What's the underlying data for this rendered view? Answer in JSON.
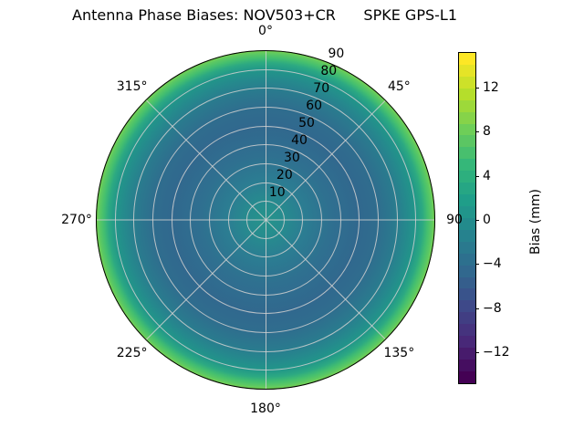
{
  "header": {
    "title": "Antenna Phase Biases: NOV503+CR      SPKE GPS-L1"
  },
  "colors": {
    "background": "#ffffff",
    "grid": "#d0d0d0",
    "outline": "#000000",
    "text": "#000000"
  },
  "chart_data": {
    "type": "heatmap",
    "projection": "polar",
    "title": "Antenna Phase Biases: NOV503+CR      SPKE GPS-L1",
    "colormap": "viridis",
    "angular_ticks": [
      {
        "angle": 0,
        "label": "0°"
      },
      {
        "angle": 45,
        "label": "45°"
      },
      {
        "angle": 90,
        "label": "90"
      },
      {
        "angle": 135,
        "label": "135°"
      },
      {
        "angle": 180,
        "label": "180°"
      },
      {
        "angle": 225,
        "label": "225°"
      },
      {
        "angle": 270,
        "label": "270°"
      },
      {
        "angle": 315,
        "label": "315°"
      }
    ],
    "radial_ticks": {
      "values": [
        10,
        20,
        30,
        40,
        50,
        60,
        70,
        80,
        90
      ],
      "labels": [
        "10",
        "20",
        "30",
        "40",
        "50",
        "60",
        "70",
        "80",
        "90"
      ],
      "label_angle_deg": 23
    },
    "radial_profile": {
      "description": "estimated phase bias (mm) vs zenith angle, read from colors",
      "zenith_deg": [
        0,
        10,
        20,
        30,
        40,
        50,
        60,
        70,
        80,
        85,
        90
      ],
      "bias_mm": [
        0.7,
        0.0,
        -1.5,
        -3.0,
        -4.5,
        -5.3,
        -5.5,
        -4.0,
        1.0,
        5.5,
        9.5
      ]
    },
    "radial_gradient_stops": [
      {
        "pos": 0.0,
        "color": "#26938b"
      },
      {
        "pos": 0.1,
        "color": "#268c8e"
      },
      {
        "pos": 0.22,
        "color": "#2b7e92"
      },
      {
        "pos": 0.38,
        "color": "#2f7090"
      },
      {
        "pos": 0.55,
        "color": "#31688e"
      },
      {
        "pos": 0.66,
        "color": "#2f6d8e"
      },
      {
        "pos": 0.76,
        "color": "#2a7a8e"
      },
      {
        "pos": 0.83,
        "color": "#25898d"
      },
      {
        "pos": 0.885,
        "color": "#219689"
      },
      {
        "pos": 0.925,
        "color": "#2ca982"
      },
      {
        "pos": 0.955,
        "color": "#44bf6f"
      },
      {
        "pos": 0.98,
        "color": "#5dc962"
      },
      {
        "pos": 1.0,
        "color": "#7bd34e"
      }
    ],
    "colorbar": {
      "label": "Bias (mm)",
      "tick_values": [
        12,
        8,
        4,
        0,
        -4,
        -8,
        -12
      ],
      "tick_labels": [
        "12",
        "8",
        "4",
        "0",
        "−4",
        "−8",
        "−12"
      ],
      "vmin": -14.7,
      "vmax": 15.2,
      "n_bands": 28,
      "band_colors_top_to_bottom": [
        "#fde725",
        "#e5e427",
        "#cde129",
        "#b5de2b",
        "#9dd93a",
        "#86d349",
        "#6ece58",
        "#5bc663",
        "#48bf6e",
        "#35b779",
        "#2daf7e",
        "#26a684",
        "#1f9e89",
        "#21958b",
        "#238b8c",
        "#26828e",
        "#2a798e",
        "#2d708e",
        "#31688e",
        "#355e8c",
        "#39538b",
        "#3e4989",
        "#413e83",
        "#45337e",
        "#482878",
        "#471b6c",
        "#450e60",
        "#440154"
      ]
    }
  }
}
